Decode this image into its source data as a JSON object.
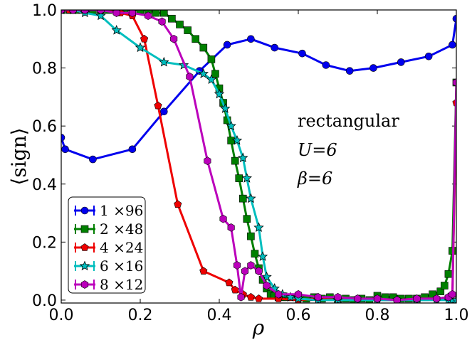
{
  "chart_data": {
    "type": "line",
    "xlabel": "ρ",
    "ylabel": "⟨sign⟩",
    "xlim": [
      0.0,
      1.0
    ],
    "ylim": [
      -0.01,
      1.0
    ],
    "xticks": [
      "0.0",
      "0.2",
      "0.4",
      "0.6",
      "0.8",
      "1.0"
    ],
    "yticks": [
      "0.0",
      "0.2",
      "0.4",
      "0.6",
      "0.8",
      "1.0"
    ],
    "annotations": [
      "rectangular",
      "U=6",
      "β=6"
    ],
    "legend_position": "lower-left",
    "series": [
      {
        "name": "1 ×96",
        "color": "#0000ee",
        "marker": "circle",
        "x": [
          0.0,
          0.01,
          0.08,
          0.18,
          0.26,
          0.35,
          0.42,
          0.48,
          0.54,
          0.61,
          0.67,
          0.73,
          0.79,
          0.86,
          0.93,
          0.99,
          1.0
        ],
        "y": [
          0.56,
          0.52,
          0.485,
          0.52,
          0.65,
          0.79,
          0.88,
          0.9,
          0.87,
          0.85,
          0.81,
          0.79,
          0.8,
          0.82,
          0.84,
          0.88,
          0.97
        ]
      },
      {
        "name": "2 ×48",
        "color": "#008000",
        "marker": "square",
        "x": [
          0.0,
          0.02,
          0.04,
          0.06,
          0.08,
          0.1,
          0.12,
          0.14,
          0.16,
          0.18,
          0.2,
          0.22,
          0.24,
          0.26,
          0.28,
          0.3,
          0.32,
          0.34,
          0.36,
          0.38,
          0.39,
          0.4,
          0.41,
          0.42,
          0.43,
          0.44,
          0.45,
          0.46,
          0.47,
          0.48,
          0.49,
          0.5,
          0.51,
          0.52,
          0.53,
          0.54,
          0.55,
          0.56,
          0.57,
          0.58,
          0.6,
          0.62,
          0.64,
          0.66,
          0.68,
          0.7,
          0.72,
          0.74,
          0.76,
          0.78,
          0.8,
          0.82,
          0.84,
          0.86,
          0.88,
          0.9,
          0.92,
          0.94,
          0.96,
          0.97,
          0.98,
          0.99,
          1.0
        ],
        "y": [
          1.0,
          1.0,
          1.0,
          1.0,
          1.0,
          1.0,
          1.0,
          1.0,
          1.0,
          1.0,
          1.0,
          1.0,
          0.99,
          0.99,
          0.97,
          0.95,
          0.93,
          0.9,
          0.87,
          0.83,
          0.78,
          0.73,
          0.68,
          0.62,
          0.55,
          0.48,
          0.42,
          0.35,
          0.28,
          0.22,
          0.16,
          0.11,
          0.07,
          0.04,
          0.02,
          0.015,
          0.01,
          0.01,
          0.01,
          0.01,
          0.01,
          0.005,
          0.01,
          0.005,
          0.01,
          0.0,
          0.005,
          0.0,
          0.005,
          0.0,
          0.015,
          0.01,
          0.01,
          0.005,
          0.005,
          0.005,
          0.01,
          0.02,
          0.03,
          0.05,
          0.09,
          0.17,
          0.75
        ]
      },
      {
        "name": "4 ×24",
        "color": "#ee0000",
        "marker": "pentagon",
        "x": [
          0.0,
          0.02,
          0.05,
          0.1,
          0.15,
          0.18,
          0.21,
          0.245,
          0.295,
          0.36,
          0.425,
          0.44,
          0.46,
          0.48,
          0.5,
          0.55,
          0.6,
          0.65,
          0.7,
          0.75,
          0.8,
          0.85,
          0.9,
          0.95,
          0.98,
          0.99,
          1.0
        ],
        "y": [
          1.0,
          1.0,
          1.0,
          1.0,
          0.99,
          0.98,
          0.9,
          0.67,
          0.33,
          0.1,
          0.06,
          0.035,
          0.02,
          0.01,
          0.005,
          0.005,
          0.0,
          0.005,
          0.0,
          0.005,
          0.0,
          0.0,
          0.005,
          0.005,
          0.01,
          0.02,
          0.68
        ]
      },
      {
        "name": "6 ×16",
        "color": "#00bebe",
        "marker": "star",
        "x": [
          0.0,
          0.03,
          0.06,
          0.1,
          0.14,
          0.2,
          0.26,
          0.31,
          0.36,
          0.38,
          0.4,
          0.415,
          0.43,
          0.445,
          0.46,
          0.47,
          0.48,
          0.5,
          0.51,
          0.52,
          0.54,
          0.56,
          0.58,
          0.6,
          0.65,
          0.7,
          0.75,
          0.8,
          0.85,
          0.9,
          0.95,
          0.98,
          0.99,
          1.0
        ],
        "y": [
          1.0,
          1.0,
          0.99,
          0.98,
          0.93,
          0.87,
          0.82,
          0.81,
          0.78,
          0.76,
          0.71,
          0.66,
          0.6,
          0.55,
          0.49,
          0.42,
          0.35,
          0.25,
          0.15,
          0.08,
          0.04,
          0.02,
          0.01,
          0.005,
          0.0,
          0.0,
          0.0,
          0.0,
          0.0,
          0.0,
          0.0,
          0.0,
          0.0,
          0.0
        ]
      },
      {
        "name": "8 ×12",
        "color": "#bb00bb",
        "marker": "hexagon",
        "x": [
          0.0,
          0.03,
          0.06,
          0.1,
          0.14,
          0.18,
          0.22,
          0.255,
          0.285,
          0.325,
          0.37,
          0.41,
          0.43,
          0.445,
          0.455,
          0.465,
          0.48,
          0.5,
          0.52,
          0.55,
          0.6,
          0.65,
          0.7,
          0.75,
          0.8,
          0.85,
          0.9,
          0.95,
          0.98,
          0.99,
          1.0
        ],
        "y": [
          1.0,
          1.0,
          1.0,
          1.0,
          0.99,
          0.99,
          0.98,
          0.96,
          0.9,
          0.77,
          0.48,
          0.28,
          0.25,
          0.12,
          0.01,
          0.1,
          0.12,
          0.1,
          0.05,
          0.02,
          0.02,
          0.01,
          0.01,
          0.005,
          0.005,
          0.0,
          0.005,
          0.005,
          0.01,
          0.02,
          0.75
        ]
      }
    ]
  }
}
